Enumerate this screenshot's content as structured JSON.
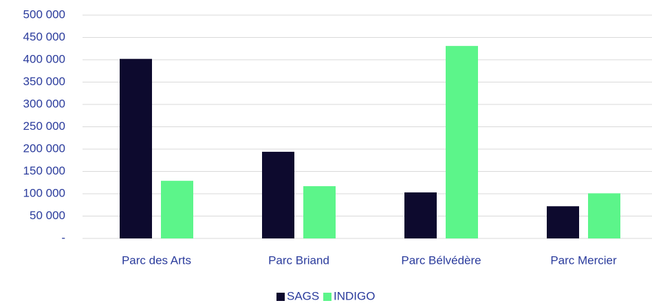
{
  "chart_data": {
    "type": "bar",
    "categories": [
      "Parc des Arts",
      "Parc Briand",
      "Parc Bélvédère",
      "Parc Mercier"
    ],
    "series": [
      {
        "name": "SAGS",
        "color": "#0d0a2e",
        "values": [
          402000,
          194000,
          103000,
          72000
        ]
      },
      {
        "name": "INDIGO",
        "color": "#5cf58a",
        "values": [
          129000,
          117000,
          431000,
          101000
        ]
      }
    ],
    "ylim": [
      0,
      500000
    ],
    "yticks": [
      {
        "value": 0,
        "label": "-"
      },
      {
        "value": 50000,
        "label": "50 000"
      },
      {
        "value": 100000,
        "label": "100 000"
      },
      {
        "value": 150000,
        "label": "150 000"
      },
      {
        "value": 200000,
        "label": "200 000"
      },
      {
        "value": 250000,
        "label": "250 000"
      },
      {
        "value": 300000,
        "label": "300 000"
      },
      {
        "value": 350000,
        "label": "350 000"
      },
      {
        "value": 400000,
        "label": "400 000"
      },
      {
        "value": 450000,
        "label": "450 000"
      },
      {
        "value": 500000,
        "label": "500 000"
      }
    ],
    "grid": true,
    "legend": "bottom"
  }
}
